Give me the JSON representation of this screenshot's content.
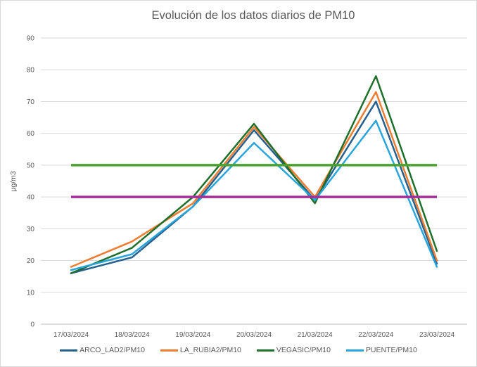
{
  "chart_data": {
    "type": "line",
    "title": "Evolución de los datos diarios de PM10",
    "ylabel": "µg/m3",
    "xlabel": "",
    "ylim": [
      0,
      90
    ],
    "ytick_step": 10,
    "grid": true,
    "legend_position": "bottom",
    "categories": [
      "17/03/2024",
      "18/03/2024",
      "19/03/2024",
      "20/03/2024",
      "21/03/2024",
      "22/03/2024",
      "23/03/2024"
    ],
    "series": [
      {
        "name": "ARCO_LAD2/PM10",
        "color": "#26608F",
        "values": [
          16,
          21,
          37,
          61,
          39,
          70,
          19
        ]
      },
      {
        "name": "LA_RUBIA2/PM10",
        "color": "#ED7D31",
        "values": [
          18,
          26,
          38,
          62,
          40,
          73,
          20
        ]
      },
      {
        "name": "VEGASIC/PM10",
        "color": "#1E6F2B",
        "values": [
          16,
          24,
          40,
          63,
          38,
          78,
          23
        ]
      },
      {
        "name": "PUENTE/PM10",
        "color": "#29A5DC",
        "values": [
          17,
          22,
          37,
          57,
          39,
          64,
          18
        ]
      }
    ],
    "reference_lines": [
      {
        "value": 50,
        "color": "#4AA32D"
      },
      {
        "value": 40,
        "color": "#A3309B"
      }
    ],
    "colors": {
      "gridline": "#D9D9D9",
      "axis_line": "#BFBFBF",
      "text": "#595959",
      "background": "#FFFFFF",
      "border": "#D9D9D9"
    }
  }
}
